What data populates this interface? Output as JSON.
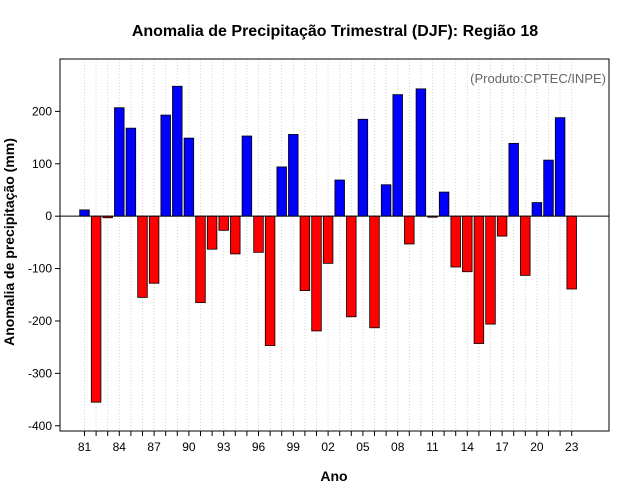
{
  "chart_data": {
    "type": "bar",
    "title": "Anomalia de Precipitação Trimestral (DJF): Região 18",
    "xlabel": "Ano",
    "ylabel": "Anomalia de precipitação (mm)",
    "annotation": "(Produto:CPTEC/INPE)",
    "ylim": [
      -410,
      300
    ],
    "yticks": [
      -400,
      -300,
      -200,
      -100,
      0,
      100,
      200
    ],
    "grid": "vertical-dotted",
    "positive_color": "#0000ff",
    "negative_color": "#ff0000",
    "xtick_labels": [
      "81",
      "84",
      "87",
      "90",
      "93",
      "96",
      "99",
      "02",
      "05",
      "08",
      "11",
      "14",
      "17",
      "20",
      "23"
    ],
    "xtick_years": [
      1981,
      1984,
      1987,
      1990,
      1993,
      1996,
      1999,
      2002,
      2005,
      2008,
      2011,
      2014,
      2017,
      2020,
      2023
    ],
    "years": [
      1981,
      1982,
      1983,
      1984,
      1985,
      1986,
      1987,
      1988,
      1989,
      1990,
      1991,
      1992,
      1993,
      1994,
      1995,
      1996,
      1997,
      1998,
      1999,
      2000,
      2001,
      2002,
      2003,
      2004,
      2005,
      2006,
      2007,
      2008,
      2009,
      2010,
      2011,
      2012,
      2013,
      2014,
      2015,
      2016,
      2017,
      2018,
      2019,
      2020,
      2021,
      2022,
      2023
    ],
    "values": [
      12,
      -355,
      -3,
      207,
      168,
      -155,
      -128,
      193,
      248,
      149,
      -165,
      -63,
      -27,
      -72,
      153,
      -69,
      -247,
      94,
      156,
      -142,
      -219,
      -90,
      69,
      -192,
      185,
      -213,
      60,
      232,
      -53,
      243,
      -2,
      46,
      -97,
      -106,
      -243,
      -206,
      -38,
      139,
      -113,
      26,
      107,
      188,
      -139
    ]
  }
}
